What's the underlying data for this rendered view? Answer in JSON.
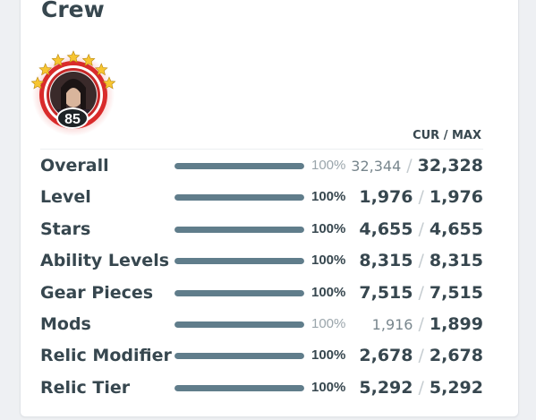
{
  "section": {
    "title": "Crew"
  },
  "portrait": {
    "level": "85",
    "star_count": 7,
    "ring_color": "#d92b2b",
    "star_color": "#f7c531"
  },
  "stats": {
    "header": "CUR / MAX",
    "rows": [
      {
        "label": "Overall",
        "percent": "100%",
        "percent_value": 1.0,
        "cur": "32,344",
        "max": "32,328",
        "muted": true
      },
      {
        "label": "Level",
        "percent": "100%",
        "percent_value": 1.0,
        "cur": "1,976",
        "max": "1,976",
        "muted": false
      },
      {
        "label": "Stars",
        "percent": "100%",
        "percent_value": 1.0,
        "cur": "4,655",
        "max": "4,655",
        "muted": false
      },
      {
        "label": "Ability Levels",
        "percent": "100%",
        "percent_value": 1.0,
        "cur": "8,315",
        "max": "8,315",
        "muted": false
      },
      {
        "label": "Gear Pieces",
        "percent": "100%",
        "percent_value": 1.0,
        "cur": "7,515",
        "max": "7,515",
        "muted": false
      },
      {
        "label": "Mods",
        "percent": "100%",
        "percent_value": 1.0,
        "cur": "1,916",
        "max": "1,899",
        "muted": true
      },
      {
        "label": "Relic Modifier",
        "percent": "100%",
        "percent_value": 1.0,
        "cur": "2,678",
        "max": "2,678",
        "muted": false
      },
      {
        "label": "Relic Tier",
        "percent": "100%",
        "percent_value": 1.0,
        "cur": "5,292",
        "max": "5,292",
        "muted": false
      }
    ]
  },
  "colors": {
    "bar": "#607d8b",
    "text": "#37474f"
  }
}
